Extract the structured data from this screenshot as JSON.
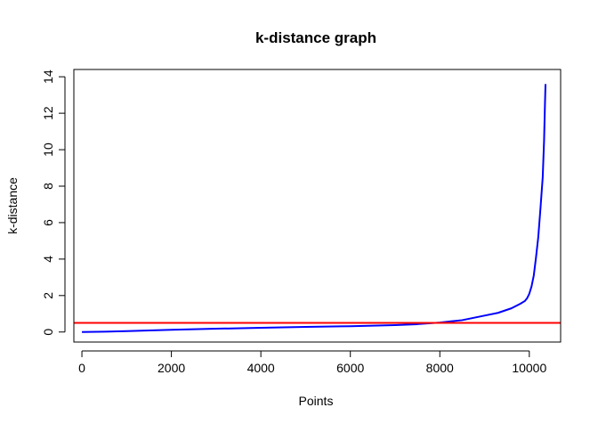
{
  "chart_data": {
    "type": "line",
    "title": "k-distance graph",
    "xlabel": "Points",
    "ylabel": "k-distance",
    "xlim": [
      -180,
      10700
    ],
    "ylim": [
      -0.55,
      14.4
    ],
    "x_ticks": [
      0,
      2000,
      4000,
      6000,
      8000,
      10000
    ],
    "x_tick_labels": [
      "0",
      "2000",
      "4000",
      "6000",
      "8000",
      "10000"
    ],
    "y_ticks": [
      0,
      2,
      4,
      6,
      8,
      10,
      12,
      14
    ],
    "y_tick_labels": [
      "0",
      "2",
      "4",
      "6",
      "8",
      "10",
      "12",
      "14"
    ],
    "grid": false,
    "legend": "none",
    "series": [
      {
        "color": "#0000ff",
        "x": [
          0,
          500,
          1000,
          2000,
          3000,
          4000,
          5000,
          6000,
          6500,
          7000,
          7500,
          8000,
          8500,
          9000,
          9300,
          9600,
          9800,
          9900,
          9950,
          10000,
          10050,
          10100,
          10150,
          10200,
          10250,
          10300,
          10330,
          10350,
          10362
        ],
        "y": [
          0.0,
          0.02,
          0.05,
          0.12,
          0.18,
          0.23,
          0.28,
          0.32,
          0.35,
          0.38,
          0.43,
          0.52,
          0.65,
          0.9,
          1.05,
          1.3,
          1.55,
          1.7,
          1.85,
          2.1,
          2.5,
          3.1,
          4.1,
          5.2,
          6.8,
          8.5,
          10.5,
          12.5,
          13.6
        ]
      }
    ],
    "hlines": [
      {
        "y": 0.5,
        "color": "#ff0000"
      }
    ]
  }
}
